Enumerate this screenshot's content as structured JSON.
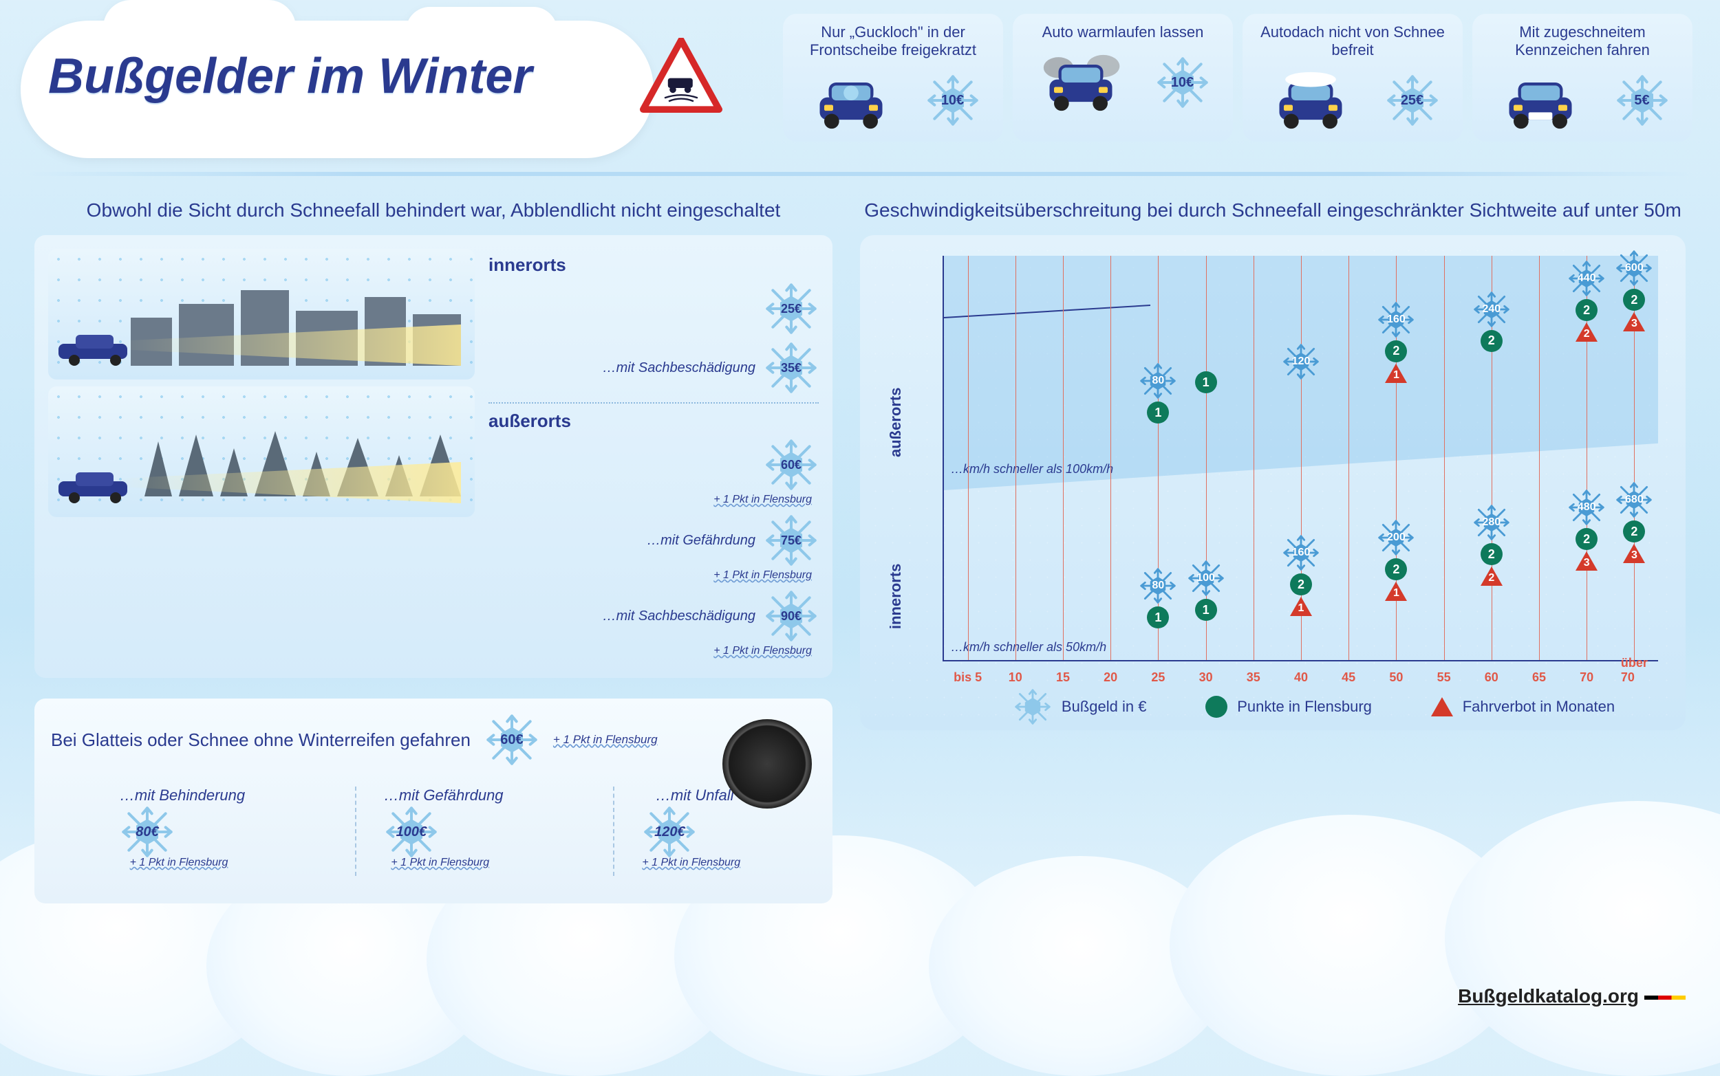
{
  "title": "Bußgelder im Winter",
  "footer": "Bußgeldkatalog.org",
  "colors": {
    "primary": "#2a3a8f",
    "flake": "#8ec8ea",
    "flake_dark": "#4a9bd4",
    "green_dot": "#0e7a5b",
    "red_tri": "#d43a2a",
    "axis_red": "#e05848",
    "bg_top": "#dcf0fb",
    "bg_mid": "#c5e6f8"
  },
  "top_cards": [
    {
      "label": "Nur „Guckloch\" in der Frontscheibe freigekratzt",
      "fine": "10€",
      "icon": "car-peephole"
    },
    {
      "label": "Auto warmlaufen lassen",
      "fine": "10€",
      "icon": "car-exhaust"
    },
    {
      "label": "Autodach nicht von Schnee befreit",
      "fine": "25€",
      "icon": "car-roof-snow"
    },
    {
      "label": "Mit zugeschneitem Kennzeichen fahren",
      "fine": "5€",
      "icon": "car-plate-snow"
    }
  ],
  "left_section": {
    "title": "Obwohl die Sicht durch Schneefall behindert war, Abblendlicht nicht eingeschaltet",
    "groups": [
      {
        "heading": "innerorts",
        "rows": [
          {
            "label": "",
            "fine": "25€"
          },
          {
            "label": "…mit Sachbeschädigung",
            "fine": "35€"
          }
        ]
      },
      {
        "heading": "außerorts",
        "rows": [
          {
            "label": "",
            "fine": "60€",
            "pkt": "+ 1 Pkt in Flensburg"
          },
          {
            "label": "…mit Gefährdung",
            "fine": "75€",
            "pkt": "+ 1 Pkt in Flensburg"
          },
          {
            "label": "…mit Sachbeschädigung",
            "fine": "90€",
            "pkt": "+ 1 Pkt in Flensburg"
          }
        ]
      }
    ]
  },
  "tire_section": {
    "title": "Bei Glatteis oder Schnee ohne Winterreifen gefahren",
    "base_fine": "60€",
    "base_pkt": "+ 1 Pkt in Flensburg",
    "cols": [
      {
        "label": "…mit Behinderung",
        "fine": "80€",
        "pkt": "+ 1 Pkt in Flensburg"
      },
      {
        "label": "…mit Gefährdung",
        "fine": "100€",
        "pkt": "+ 1 Pkt in Flensburg"
      },
      {
        "label": "…mit Unfall",
        "fine": "120€",
        "pkt": "+ 1 Pkt in Flensburg"
      }
    ]
  },
  "chart": {
    "title": "Geschwindigkeitsüberschreitung bei durch Schneefall eingeschränkter Sichtweite auf unter 50m",
    "y_upper": "außerorts",
    "y_lower": "innerorts",
    "note_upper": "…km/h schneller als 100km/h",
    "note_lower": "…km/h schneller als 50km/h",
    "x_ticks": [
      "bis 5",
      "10",
      "15",
      "20",
      "25",
      "30",
      "35",
      "40",
      "45",
      "50",
      "55",
      "60",
      "65",
      "70",
      "über 70"
    ],
    "upper_points": [
      {
        "xi": 4,
        "fine": "80",
        "dots": 1,
        "ban": null
      },
      {
        "xi": 5,
        "fine": null,
        "dots": 1,
        "ban": null
      },
      {
        "xi": 7,
        "fine": "120",
        "dots": null,
        "ban": null
      },
      {
        "xi": 9,
        "fine": "160",
        "dots": 2,
        "ban": 1
      },
      {
        "xi": 11,
        "fine": "240",
        "dots": 2,
        "ban": null
      },
      {
        "xi": 13,
        "fine": "440",
        "dots": 2,
        "ban": 2
      },
      {
        "xi": 14,
        "fine": "600",
        "dots": 2,
        "ban": 3
      }
    ],
    "lower_points": [
      {
        "xi": 4,
        "fine": "80",
        "dots": 1,
        "ban": null
      },
      {
        "xi": 5,
        "fine": "100",
        "dots": 1,
        "ban": null
      },
      {
        "xi": 7,
        "fine": "160",
        "dots": 2,
        "ban": 1
      },
      {
        "xi": 9,
        "fine": "200",
        "dots": 2,
        "ban": 1
      },
      {
        "xi": 11,
        "fine": "280",
        "dots": 2,
        "ban": 2
      },
      {
        "xi": 13,
        "fine": "480",
        "dots": 2,
        "ban": 3
      },
      {
        "xi": 14,
        "fine": "680",
        "dots": 2,
        "ban": 3
      }
    ],
    "legend": [
      {
        "type": "flake",
        "label": "Bußgeld in €"
      },
      {
        "type": "dot",
        "label": "Punkte in Flensburg"
      },
      {
        "type": "tri",
        "label": "Fahrverbot in Monaten"
      }
    ]
  }
}
